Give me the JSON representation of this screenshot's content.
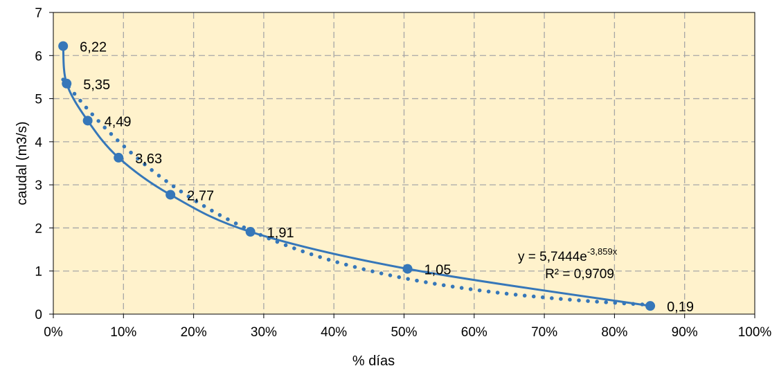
{
  "chart_data": {
    "type": "scatter",
    "xlabel": "% días",
    "ylabel": "caudal  (m3/s)",
    "xlim": [
      0,
      1
    ],
    "ylim": [
      0,
      7
    ],
    "x_ticks": [
      "0%",
      "10%",
      "20%",
      "30%",
      "40%",
      "50%",
      "60%",
      "70%",
      "80%",
      "90%",
      "100%"
    ],
    "y_ticks": [
      "0",
      "1",
      "2",
      "3",
      "4",
      "5",
      "6",
      "7"
    ],
    "grid": true,
    "legend": "none",
    "series": [
      {
        "x": [
          0.014,
          0.019,
          0.049,
          0.093,
          0.167,
          0.281,
          0.505,
          0.851
        ],
        "y": [
          6.22,
          5.35,
          4.49,
          3.63,
          2.77,
          1.91,
          1.05,
          0.19
        ],
        "labels": [
          "6,22",
          "5,35",
          "4,49",
          "3,63",
          "2,77",
          "1,91",
          "1,05",
          "0,19"
        ]
      }
    ],
    "trendline": {
      "type": "exponential",
      "a": 5.7444,
      "b": -3.859,
      "equation_prefix": "y = 5,7444e",
      "equation_exponent": "-3,859x",
      "r2_label": "R² = 0,9709"
    },
    "colors": {
      "series": "#3677B9",
      "plot_bg": "#FFF2CC",
      "grid": "#A6A6A6"
    }
  }
}
